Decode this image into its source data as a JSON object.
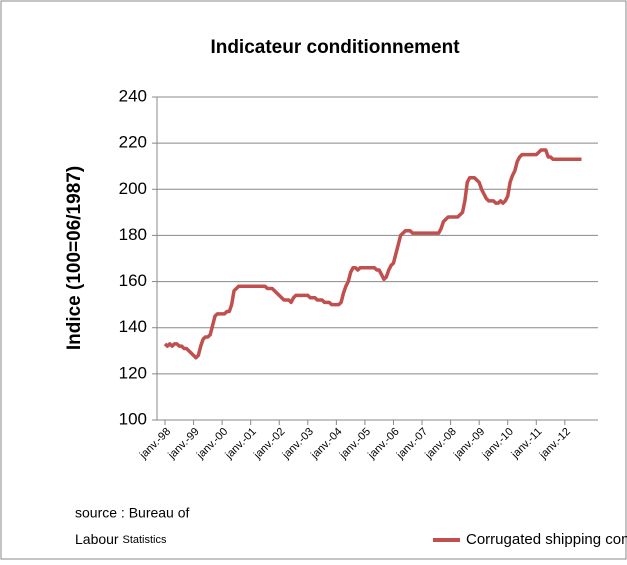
{
  "chart_data": {
    "type": "line",
    "title": "Indicateur conditionnement",
    "y_label": "Indice (100=06/1987)",
    "source": [
      "source : Bureau of",
      "Labour",
      "Statistics"
    ],
    "categories": [
      "janv.-98",
      null,
      null,
      null,
      null,
      null,
      null,
      null,
      null,
      null,
      null,
      null,
      "janv.-99",
      null,
      null,
      null,
      null,
      null,
      null,
      null,
      null,
      null,
      null,
      null,
      "janv.-00",
      null,
      null,
      null,
      null,
      null,
      null,
      null,
      null,
      null,
      null,
      null,
      "janv.-01",
      null,
      null,
      null,
      null,
      null,
      null,
      null,
      null,
      null,
      null,
      null,
      "janv.-02",
      null,
      null,
      null,
      null,
      null,
      null,
      null,
      null,
      null,
      null,
      null,
      "janv.-03",
      null,
      null,
      null,
      null,
      null,
      null,
      null,
      null,
      null,
      null,
      null,
      "janv.-04",
      null,
      null,
      null,
      null,
      null,
      null,
      null,
      null,
      null,
      null,
      null,
      "janv.-05",
      null,
      null,
      null,
      null,
      null,
      null,
      null,
      null,
      null,
      null,
      null,
      "janv.-06",
      null,
      null,
      null,
      null,
      null,
      null,
      null,
      null,
      null,
      null,
      null,
      "janv.-07",
      null,
      null,
      null,
      null,
      null,
      null,
      null,
      null,
      null,
      null,
      null,
      "janv.-08",
      null,
      null,
      null,
      null,
      null,
      null,
      null,
      null,
      null,
      null,
      null,
      "janv.-09",
      null,
      null,
      null,
      null,
      null,
      null,
      null,
      null,
      null,
      null,
      null,
      "janv.-10",
      null,
      null,
      null,
      null,
      null,
      null,
      null,
      null,
      null,
      null,
      null,
      "janv.-11",
      null,
      null,
      null,
      null,
      null,
      null,
      null,
      null,
      null,
      null,
      null,
      "janv.-12",
      null,
      null,
      null,
      null,
      null,
      null,
      null
    ],
    "series": [
      {
        "name": "Corrugated shipping container",
        "color": "#c0504d",
        "values": [
          133,
          132,
          133,
          132,
          133,
          133,
          132,
          132,
          131,
          131,
          130,
          129,
          128,
          127,
          128,
          132,
          135,
          136,
          136,
          137,
          141,
          145,
          146,
          146,
          146,
          146,
          147,
          147,
          150,
          156,
          157,
          158,
          158,
          158,
          158,
          158,
          158,
          158,
          158,
          158,
          158,
          158,
          158,
          157,
          157,
          157,
          156,
          155,
          154,
          153,
          152,
          152,
          152,
          151,
          153,
          154,
          154,
          154,
          154,
          154,
          154,
          153,
          153,
          153,
          152,
          152,
          152,
          151,
          151,
          151,
          150,
          150,
          150,
          150,
          151,
          155,
          158,
          160,
          164,
          166,
          166,
          165,
          166,
          166,
          166,
          166,
          166,
          166,
          166,
          165,
          165,
          163,
          161,
          162,
          165,
          167,
          168,
          172,
          176,
          180,
          181,
          182,
          182,
          182,
          181,
          181,
          181,
          181,
          181,
          181,
          181,
          181,
          181,
          181,
          181,
          181,
          183,
          186,
          187,
          188,
          188,
          188,
          188,
          188,
          189,
          190,
          195,
          203,
          205,
          205,
          205,
          204,
          203,
          200,
          198,
          196,
          195,
          195,
          195,
          194,
          194,
          195,
          194,
          195,
          197,
          203,
          206,
          208,
          212,
          214,
          215,
          215,
          215,
          215,
          215,
          215,
          215,
          216,
          217,
          217,
          217,
          214,
          214,
          213,
          213,
          213,
          213,
          213,
          213,
          213,
          213,
          213,
          213,
          213,
          213,
          213
        ]
      }
    ],
    "ylim": [
      100,
      240
    ],
    "yticks": [
      100,
      120,
      140,
      160,
      180,
      200,
      220,
      240
    ],
    "grid": true
  }
}
